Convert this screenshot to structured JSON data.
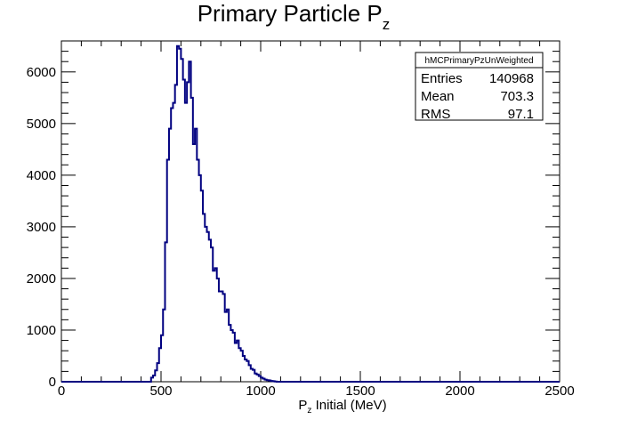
{
  "chart_data": {
    "type": "histogram",
    "title_main": "Primary Particle P",
    "title_sub": "z",
    "xlabel_main": "P",
    "xlabel_sub": "z",
    "xlabel_rest": " Initial (MeV)",
    "ylabel": "",
    "xlim": [
      0,
      2500
    ],
    "ylim": [
      0,
      6600
    ],
    "xticks": [
      0,
      500,
      1000,
      1500,
      2000,
      2500
    ],
    "yticks": [
      0,
      1000,
      2000,
      3000,
      4000,
      5000,
      6000
    ],
    "grid": false,
    "bin_width": 10,
    "line_color": "#000080",
    "bins": [
      [
        450,
        80
      ],
      [
        460,
        120
      ],
      [
        470,
        220
      ],
      [
        480,
        360
      ],
      [
        490,
        650
      ],
      [
        500,
        900
      ],
      [
        510,
        1400
      ],
      [
        520,
        2700
      ],
      [
        530,
        4300
      ],
      [
        540,
        4900
      ],
      [
        550,
        5300
      ],
      [
        560,
        5400
      ],
      [
        570,
        5750
      ],
      [
        580,
        6500
      ],
      [
        590,
        6450
      ],
      [
        600,
        6250
      ],
      [
        610,
        5850
      ],
      [
        620,
        5400
      ],
      [
        630,
        5800
      ],
      [
        640,
        6200
      ],
      [
        650,
        5500
      ],
      [
        660,
        4600
      ],
      [
        670,
        4900
      ],
      [
        680,
        4300
      ],
      [
        690,
        4000
      ],
      [
        700,
        3700
      ],
      [
        710,
        3250
      ],
      [
        720,
        3000
      ],
      [
        730,
        2900
      ],
      [
        740,
        2750
      ],
      [
        750,
        2600
      ],
      [
        760,
        2150
      ],
      [
        770,
        2200
      ],
      [
        780,
        2000
      ],
      [
        790,
        1750
      ],
      [
        800,
        1750
      ],
      [
        810,
        1700
      ],
      [
        820,
        1350
      ],
      [
        830,
        1400
      ],
      [
        840,
        1100
      ],
      [
        850,
        1000
      ],
      [
        860,
        950
      ],
      [
        870,
        750
      ],
      [
        880,
        800
      ],
      [
        890,
        650
      ],
      [
        900,
        600
      ],
      [
        910,
        500
      ],
      [
        920,
        430
      ],
      [
        930,
        400
      ],
      [
        940,
        320
      ],
      [
        950,
        250
      ],
      [
        960,
        230
      ],
      [
        970,
        160
      ],
      [
        980,
        140
      ],
      [
        990,
        110
      ],
      [
        1000,
        80
      ],
      [
        1010,
        60
      ],
      [
        1020,
        40
      ],
      [
        1030,
        30
      ],
      [
        1040,
        25
      ],
      [
        1050,
        15
      ],
      [
        1060,
        10
      ],
      [
        1070,
        5
      ],
      [
        1080,
        0
      ]
    ],
    "stats": {
      "name": "hMCPrimaryPzUnWeighted",
      "rows": [
        {
          "label": "Entries",
          "value": "140968"
        },
        {
          "label": "Mean",
          "value": "703.3"
        },
        {
          "label": "RMS",
          "value": "97.1"
        }
      ]
    }
  }
}
